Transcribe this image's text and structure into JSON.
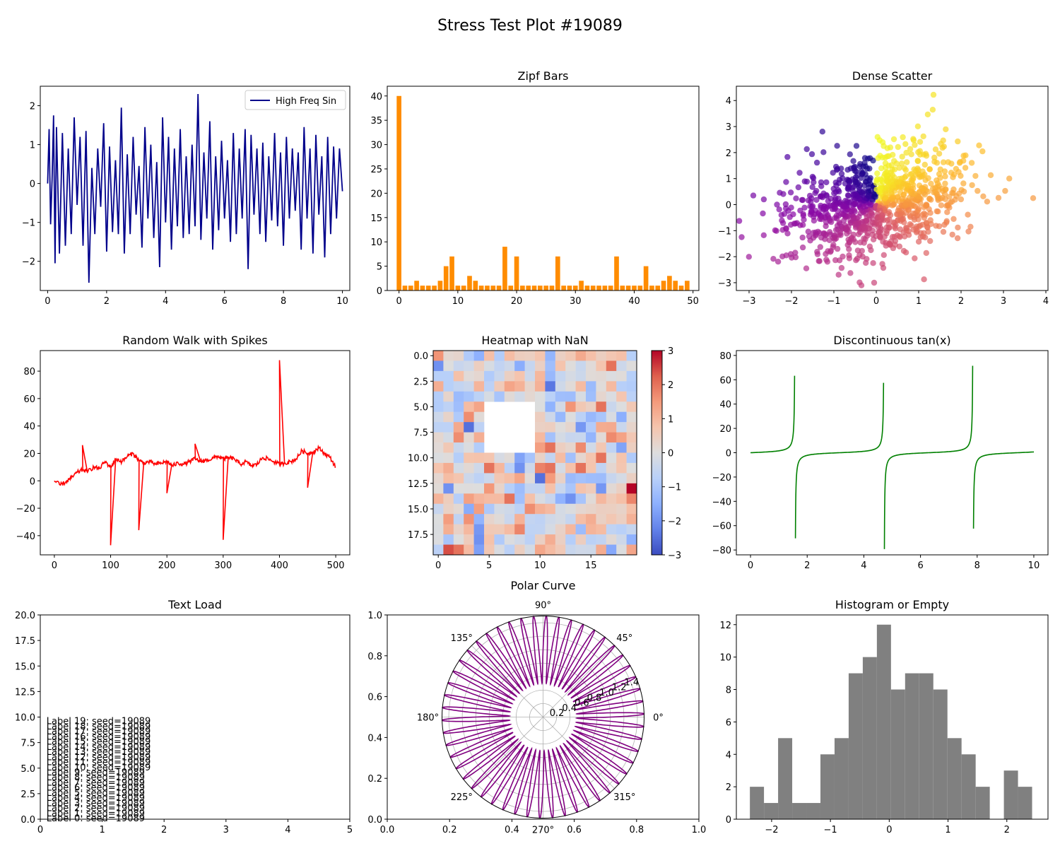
{
  "figure_title": "Stress Test Plot #19089",
  "chart_data": [
    {
      "id": "p1",
      "type": "line",
      "title": "",
      "xlim": [
        -0.25,
        10.25
      ],
      "ylim": [
        -2.75,
        2.5
      ],
      "xticks": [
        0,
        2,
        4,
        6,
        8,
        10
      ],
      "yticks": [
        -2,
        -1,
        0,
        1,
        2
      ],
      "legend": {
        "label": "High Freq Sin",
        "position": "top-right"
      },
      "series": [
        {
          "name": "High Freq Sin",
          "color": "#00008b",
          "x": [
            0,
            0.05,
            0.1,
            0.15,
            0.2,
            0.25,
            0.3,
            0.4,
            0.5,
            0.6,
            0.7,
            0.8,
            0.9,
            1.0,
            1.1,
            1.2,
            1.3,
            1.4,
            1.5,
            1.6,
            1.7,
            1.8,
            1.9,
            2.0,
            2.1,
            2.2,
            2.3,
            2.4,
            2.5,
            2.6,
            2.7,
            2.8,
            2.9,
            3.0,
            3.1,
            3.2,
            3.3,
            3.4,
            3.5,
            3.6,
            3.7,
            3.8,
            3.9,
            4.0,
            4.1,
            4.2,
            4.3,
            4.4,
            4.5,
            4.6,
            4.7,
            4.8,
            4.9,
            5.0,
            5.1,
            5.2,
            5.3,
            5.4,
            5.5,
            5.6,
            5.7,
            5.8,
            5.9,
            6.0,
            6.1,
            6.2,
            6.3,
            6.4,
            6.5,
            6.6,
            6.7,
            6.8,
            6.9,
            7.0,
            7.1,
            7.2,
            7.3,
            7.4,
            7.5,
            7.6,
            7.7,
            7.8,
            7.9,
            8.0,
            8.1,
            8.2,
            8.3,
            8.4,
            8.5,
            8.6,
            8.7,
            8.8,
            8.9,
            9.0,
            9.1,
            9.2,
            9.3,
            9.4,
            9.5,
            9.6,
            9.7,
            9.8,
            9.9,
            10.0
          ],
          "y": [
            0,
            1.4,
            -1.05,
            0.1,
            1.75,
            -2.05,
            1.45,
            -1.8,
            1.3,
            -1.6,
            0.9,
            -1.3,
            1.7,
            -0.55,
            1.2,
            -1.6,
            1.35,
            -2.55,
            0.4,
            -1.3,
            0.9,
            -0.6,
            1.55,
            -1.75,
            0.95,
            -1.25,
            0.6,
            -1.3,
            1.95,
            -1.8,
            0.75,
            -1.3,
            1.2,
            -0.8,
            0.45,
            -1.65,
            1.45,
            -0.9,
            1.0,
            -1.4,
            0.55,
            -2.15,
            1.7,
            -1.0,
            1.2,
            -1.7,
            0.9,
            -1.1,
            1.4,
            -1.4,
            0.7,
            -1.3,
            1.0,
            -1.1,
            2.3,
            -1.45,
            0.8,
            -0.9,
            1.6,
            -1.7,
            0.7,
            -1.2,
            1.1,
            -0.9,
            0.6,
            -1.5,
            1.3,
            -1.3,
            0.9,
            -0.9,
            1.4,
            -2.2,
            1.25,
            -0.8,
            0.9,
            -1.3,
            1.05,
            -1.5,
            0.7,
            -0.95,
            1.3,
            -1.1,
            0.8,
            -1.6,
            1.2,
            -0.9,
            0.9,
            -0.7,
            0.8,
            -1.7,
            1.45,
            -0.9,
            0.9,
            -1.8,
            1.25,
            -0.8,
            0.7,
            -1.9,
            1.2,
            -1.3,
            0.95,
            -0.9,
            0.9,
            -0.2
          ]
        }
      ]
    },
    {
      "id": "p2",
      "type": "bar",
      "title": "Zipf Bars",
      "xlim": [
        -2,
        51
      ],
      "ylim": [
        0,
        42
      ],
      "xticks": [
        0,
        10,
        20,
        30,
        40,
        50
      ],
      "yticks": [
        0,
        5,
        10,
        15,
        20,
        25,
        30,
        35,
        40
      ],
      "color": "#ff8c00",
      "categories": [
        0,
        1,
        2,
        3,
        4,
        5,
        6,
        7,
        8,
        9,
        10,
        11,
        12,
        13,
        14,
        15,
        16,
        17,
        18,
        19,
        20,
        21,
        22,
        23,
        24,
        25,
        26,
        27,
        28,
        29,
        30,
        31,
        32,
        33,
        34,
        35,
        36,
        37,
        38,
        39,
        40,
        41,
        42,
        43,
        44,
        45,
        46,
        47,
        48,
        49
      ],
      "values": [
        40,
        1,
        1,
        2,
        1,
        1,
        1,
        2,
        5,
        7,
        1,
        1,
        3,
        2,
        1,
        1,
        1,
        1,
        9,
        1,
        7,
        1,
        1,
        1,
        1,
        1,
        1,
        7,
        1,
        1,
        1,
        2,
        1,
        1,
        1,
        1,
        1,
        7,
        1,
        1,
        1,
        1,
        5,
        1,
        1,
        2,
        3,
        2,
        1,
        2
      ]
    },
    {
      "id": "p3",
      "type": "scatter",
      "title": "Dense Scatter",
      "xlim": [
        -3.3,
        4.05
      ],
      "ylim": [
        -3.3,
        4.55
      ],
      "xticks": [
        -3,
        -2,
        -1,
        0,
        1,
        2,
        3,
        4
      ],
      "yticks": [
        -3,
        -2,
        -1,
        0,
        1,
        2,
        3,
        4
      ],
      "colormap": "plasma",
      "n_points": 1000,
      "correlation": 0.3,
      "outliers": [
        [
          1.35,
          4.22
        ],
        [
          3.7,
          0.25
        ],
        [
          -2.9,
          0.35
        ],
        [
          -0.05,
          -3.0
        ]
      ]
    },
    {
      "id": "p4",
      "type": "line",
      "title": "Random Walk with Spikes",
      "xlim": [
        -25,
        525
      ],
      "ylim": [
        -54,
        95
      ],
      "xticks": [
        0,
        100,
        200,
        300,
        400,
        500
      ],
      "yticks": [
        -40,
        -20,
        0,
        20,
        40,
        60,
        80
      ],
      "series": [
        {
          "name": "",
          "color": "#ff0000",
          "x": [
            0,
            10,
            20,
            30,
            40,
            50,
            60,
            70,
            80,
            90,
            100,
            110,
            120,
            130,
            140,
            150,
            160,
            170,
            180,
            190,
            200,
            210,
            220,
            230,
            240,
            250,
            260,
            270,
            280,
            290,
            300,
            310,
            320,
            330,
            340,
            350,
            360,
            370,
            380,
            390,
            400,
            410,
            420,
            430,
            440,
            450,
            460,
            470,
            480,
            490,
            500
          ],
          "y": [
            0,
            -3,
            -1,
            2,
            6,
            8,
            7,
            10,
            9,
            14,
            10,
            16,
            14,
            18,
            20,
            15,
            13,
            14,
            12,
            13,
            14,
            11,
            13,
            12,
            14,
            16,
            14,
            15,
            16,
            18,
            16,
            17,
            16,
            12,
            14,
            11,
            12,
            17,
            16,
            14,
            12,
            13,
            14,
            16,
            22,
            20,
            21,
            24,
            20,
            17,
            10
          ]
        }
      ],
      "spikes": [
        {
          "x": 50,
          "y": 26
        },
        {
          "x": 100,
          "y": -47
        },
        {
          "x": 150,
          "y": -36
        },
        {
          "x": 200,
          "y": -9
        },
        {
          "x": 250,
          "y": 27
        },
        {
          "x": 300,
          "y": -43
        },
        {
          "x": 400,
          "y": 88
        },
        {
          "x": 450,
          "y": -5
        }
      ]
    },
    {
      "id": "p5",
      "type": "heatmap",
      "title": "Heatmap with NaN",
      "rows": 20,
      "cols": 20,
      "colormap": "coolwarm",
      "vmin": -3,
      "vmax": 3,
      "nan_region": {
        "rows": [
          5,
          9
        ],
        "cols": [
          5,
          9
        ]
      },
      "xticks": [
        0,
        5,
        10,
        15
      ],
      "yticks": [
        "0.0",
        "2.5",
        "5.0",
        "7.5",
        "10.0",
        "12.5",
        "15.0",
        "17.5"
      ],
      "colorbar_ticks": [
        "3",
        "2",
        "1",
        "0",
        "−1",
        "−2",
        "−3"
      ],
      "highlights": [
        {
          "row": 13,
          "col": 19,
          "value": 3.0
        },
        {
          "row": 19,
          "col": 1,
          "value": 2.4
        },
        {
          "row": 3,
          "col": 11,
          "value": -2.4
        },
        {
          "row": 12,
          "col": 10,
          "value": -2.5
        },
        {
          "row": 7,
          "col": 3,
          "value": -2.5
        }
      ]
    },
    {
      "id": "p6",
      "type": "line",
      "title": "Discontinuous tan(x)",
      "xlim": [
        -0.5,
        10.5
      ],
      "ylim": [
        -84,
        84
      ],
      "xticks": [
        0,
        2,
        4,
        6,
        8,
        10
      ],
      "yticks": [
        -80,
        -60,
        -40,
        -20,
        0,
        20,
        40,
        60,
        80
      ],
      "series": [
        {
          "name": "",
          "color": "#008000",
          "function": "tan(x)",
          "x_range": [
            0,
            10
          ],
          "clip": 80
        }
      ]
    },
    {
      "id": "p7",
      "type": "text",
      "title": "Text Load",
      "xlim": [
        0,
        5
      ],
      "ylim": [
        0,
        20
      ],
      "xticks": [
        0,
        1,
        2,
        3,
        4,
        5
      ],
      "yticks": [
        "0.0",
        "2.5",
        "5.0",
        "7.5",
        "10.0",
        "12.5",
        "15.0",
        "17.5",
        "20.0"
      ],
      "labels": [
        "Label 0: seed=19089",
        "Label 1: seed=19089",
        "Label 2: seed=19089",
        "Label 3: seed=19089",
        "Label 4: seed=19089",
        "Label 5: seed=19089",
        "Label 6: seed=19089",
        "Label 7: seed=19089",
        "Label 8: seed=19089",
        "Label 9: seed=19089",
        "Label 10: seed=19089",
        "Label 11: seed=19089",
        "Label 12: seed=19089",
        "Label 13: seed=19089",
        "Label 14: seed=19089",
        "Label 15: seed=19089",
        "Label 16: seed=19089",
        "Label 17: seed=19089",
        "Label 18: seed=19089",
        "Label 19: seed=19089"
      ],
      "label_x": 0.1,
      "label_y_step": 0.5
    },
    {
      "id": "p8",
      "type": "polar",
      "title": "Polar Curve",
      "xlim": [
        0,
        1
      ],
      "ylim": [
        0,
        1
      ],
      "xticks": [
        "0.0",
        "0.2",
        "0.4",
        "0.6",
        "0.8",
        "1.0"
      ],
      "yticks": [
        "0.0",
        "0.2",
        "0.4",
        "0.6",
        "0.8",
        "1.0"
      ],
      "angle_labels": [
        "0°",
        "45°",
        "90°",
        "135°",
        "180°",
        "225°",
        "270°",
        "315°"
      ],
      "radial_labels": [
        "0.2",
        "0.4",
        "0.6",
        "0.8",
        "1.0",
        "1.2",
        "1.4"
      ],
      "rmax": 1.5,
      "color": "#800080",
      "function": "r = 1 + 0.5*sin(50*theta)"
    },
    {
      "id": "p9",
      "type": "bar",
      "title": "Histogram or Empty",
      "xlim": [
        -2.6,
        2.7
      ],
      "ylim": [
        0,
        12.6
      ],
      "xticks": [
        -2,
        -1,
        0,
        1,
        2
      ],
      "yticks": [
        0,
        2,
        4,
        6,
        8,
        10,
        12
      ],
      "color": "#808080",
      "bin_edges": [
        -2.37,
        -2.13,
        -1.89,
        -1.65,
        -1.41,
        -1.17,
        -0.93,
        -0.69,
        -0.45,
        -0.21,
        0.03,
        0.27,
        0.51,
        0.75,
        0.99,
        1.23,
        1.47,
        1.71,
        1.95,
        2.19,
        2.43
      ],
      "values": [
        2,
        1,
        5,
        1,
        1,
        4,
        5,
        9,
        10,
        12,
        8,
        9,
        9,
        8,
        5,
        4,
        2,
        0,
        3,
        2
      ]
    }
  ]
}
